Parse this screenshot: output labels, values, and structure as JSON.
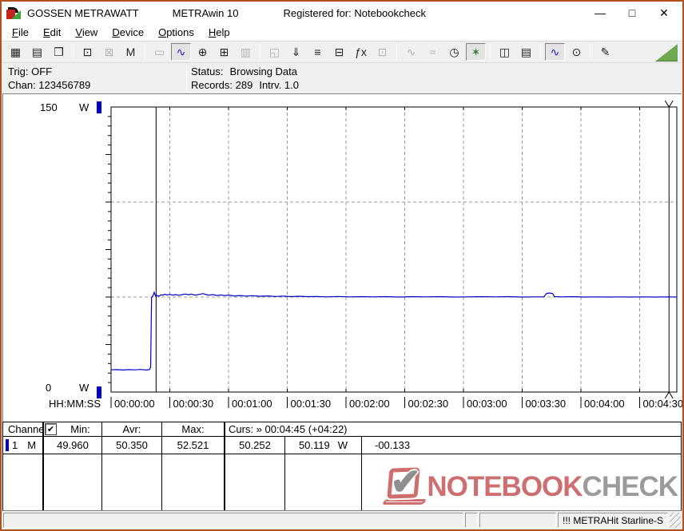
{
  "window": {
    "title_left": "GOSSEN METRAWATT",
    "title_mid": "METRAwin 10",
    "title_right": "Registered for: Notebookcheck",
    "controls": {
      "minimize": "—",
      "maximize": "□",
      "close": "✕"
    },
    "border_color": "#b0511e"
  },
  "menu": {
    "items": [
      {
        "label": "File"
      },
      {
        "label": "Edit"
      },
      {
        "label": "View"
      },
      {
        "label": "Device"
      },
      {
        "label": "Options"
      },
      {
        "label": "Help"
      }
    ]
  },
  "toolbar": {
    "buttons": [
      {
        "name": "save-button",
        "glyph": "▦"
      },
      {
        "name": "save-as-button",
        "glyph": "▤"
      },
      {
        "name": "open-file-button",
        "glyph": "❒"
      },
      {
        "sep": true
      },
      {
        "name": "read-from-device-button",
        "glyph": "⊡"
      },
      {
        "name": "send-to-device-button",
        "glyph": "⊠",
        "state": "disabled"
      },
      {
        "name": "read-memory-button",
        "glyph": "M"
      },
      {
        "sep": true
      },
      {
        "name": "numeric-display-button",
        "glyph": "▭",
        "state": "disabled"
      },
      {
        "name": "chart-display-button",
        "glyph": "∿",
        "state": "pressed",
        "color": "#2222cc"
      },
      {
        "name": "crosshair-cursor-button",
        "glyph": "⊕"
      },
      {
        "name": "table-display-button",
        "glyph": "⊞"
      },
      {
        "name": "histogram-display-button",
        "glyph": "▥",
        "state": "disabled"
      },
      {
        "sep": true
      },
      {
        "name": "copy-export-button",
        "glyph": "◱",
        "state": "disabled"
      },
      {
        "name": "store-config-button",
        "glyph": "⇓"
      },
      {
        "name": "channel-settings-button",
        "glyph": "≡"
      },
      {
        "name": "monitor-settings-button",
        "glyph": "⊟"
      },
      {
        "name": "formula-button",
        "glyph": "ƒx"
      },
      {
        "name": "interval-button",
        "glyph": "⊡",
        "state": "disabled"
      },
      {
        "sep": true
      },
      {
        "name": "wave-single-button",
        "glyph": "∿",
        "state": "disabled"
      },
      {
        "name": "wave-dense-button",
        "glyph": "≈",
        "state": "disabled"
      },
      {
        "name": "clock-button",
        "glyph": "◷"
      },
      {
        "name": "trigger-button",
        "glyph": "✶",
        "state": "pressed",
        "color": "#2e7d32"
      },
      {
        "sep": true
      },
      {
        "name": "print-preview-button",
        "glyph": "◫"
      },
      {
        "name": "print-button",
        "glyph": "▤"
      },
      {
        "sep": true
      },
      {
        "name": "zoom-curve-button",
        "glyph": "∿",
        "state": "pressed",
        "color": "#2222cc"
      },
      {
        "name": "zoom-manual-button",
        "glyph": "⊙"
      },
      {
        "sep": true
      },
      {
        "name": "comment-button",
        "glyph": "✎"
      }
    ]
  },
  "status_panel": {
    "trig": "Trig: OFF",
    "chan": "Chan: 123456789",
    "status_label": "Status:",
    "status_value": "Browsing Data",
    "records": "Records: 289",
    "interval": "Intrv. 1.0"
  },
  "chart_data": {
    "type": "line",
    "title": "",
    "xlabel": "HH:MM:SS",
    "ylabel": "W",
    "ylim": [
      0,
      150
    ],
    "y_top_label": "150",
    "y_bottom_label": "0",
    "y_unit": "W",
    "y_gridlines_w": [
      50,
      100
    ],
    "grid": "dashed-gray",
    "x_ticks": [
      {
        "t": 0,
        "label": "00:00:00"
      },
      {
        "t": 30,
        "label": "00:00:30"
      },
      {
        "t": 60,
        "label": "00:01:00"
      },
      {
        "t": 90,
        "label": "00:01:30"
      },
      {
        "t": 120,
        "label": "00:02:00"
      },
      {
        "t": 150,
        "label": "00:02:30"
      },
      {
        "t": 180,
        "label": "00:03:00"
      },
      {
        "t": 210,
        "label": "00:03:30"
      },
      {
        "t": 240,
        "label": "00:04:00"
      },
      {
        "t": 270,
        "label": "00:04:30"
      }
    ],
    "xlim_seconds": [
      0,
      289
    ],
    "cursors": {
      "c1_seconds": 23,
      "c2_seconds": 285
    },
    "series": [
      {
        "name": "Channel 1 power (W)",
        "color": "#0000cc",
        "points": [
          [
            0,
            11.7
          ],
          [
            3,
            11.8
          ],
          [
            6,
            11.6
          ],
          [
            9,
            11.8
          ],
          [
            12,
            11.7
          ],
          [
            15,
            11.9
          ],
          [
            18,
            11.6
          ],
          [
            19.6,
            11.8
          ],
          [
            20.2,
            13.0
          ],
          [
            20.7,
            49.8
          ],
          [
            21.3,
            50.4
          ],
          [
            22,
            52.5
          ],
          [
            22.8,
            50.3
          ],
          [
            23.6,
            50.9
          ],
          [
            24.5,
            50.4
          ],
          [
            25.5,
            51.2
          ],
          [
            26.5,
            51.0
          ],
          [
            27.5,
            51.5
          ],
          [
            28.5,
            51.1
          ],
          [
            30,
            51.4
          ],
          [
            31.5,
            51.0
          ],
          [
            33,
            51.3
          ],
          [
            34.5,
            50.9
          ],
          [
            36,
            51.2
          ],
          [
            38,
            51.6
          ],
          [
            39.5,
            51.2
          ],
          [
            41,
            51.5
          ],
          [
            43,
            51.0
          ],
          [
            45,
            51.4
          ],
          [
            47,
            51.8
          ],
          [
            48.5,
            51.3
          ],
          [
            50,
            51.0
          ],
          [
            52,
            51.3
          ],
          [
            54,
            50.8
          ],
          [
            56,
            51.1
          ],
          [
            58,
            50.8
          ],
          [
            60,
            51.0
          ],
          [
            63,
            50.6
          ],
          [
            66,
            50.8
          ],
          [
            69,
            50.5
          ],
          [
            72,
            50.7
          ],
          [
            76,
            50.4
          ],
          [
            80,
            50.6
          ],
          [
            84,
            50.3
          ],
          [
            88,
            50.5
          ],
          [
            92,
            50.2
          ],
          [
            96,
            50.4
          ],
          [
            100,
            50.2
          ],
          [
            105,
            50.3
          ],
          [
            110,
            50.1
          ],
          [
            116,
            50.3
          ],
          [
            122,
            50.1
          ],
          [
            128,
            50.2
          ],
          [
            134,
            50.1
          ],
          [
            140,
            50.2
          ],
          [
            147,
            50.0
          ],
          [
            154,
            50.2
          ],
          [
            161,
            50.1
          ],
          [
            168,
            50.2
          ],
          [
            175,
            50.0
          ],
          [
            182,
            50.1
          ],
          [
            189,
            50.2
          ],
          [
            196,
            50.1
          ],
          [
            203,
            50.2
          ],
          [
            210,
            50.0
          ],
          [
            217,
            50.1
          ],
          [
            221,
            50.1
          ],
          [
            222.5,
            51.9
          ],
          [
            224,
            52.1
          ],
          [
            225.5,
            51.8
          ],
          [
            226.5,
            50.2
          ],
          [
            230,
            50.1
          ],
          [
            236,
            50.2
          ],
          [
            242,
            50.0
          ],
          [
            248,
            50.1
          ],
          [
            254,
            50.0
          ],
          [
            260,
            50.1
          ],
          [
            266,
            50.0
          ],
          [
            272,
            50.1
          ],
          [
            278,
            50.0
          ],
          [
            284,
            50.1
          ],
          [
            289,
            50.0
          ]
        ]
      }
    ]
  },
  "table": {
    "headers": {
      "channel": "Channel:",
      "checkbox_checked": "✔",
      "min": "Min:",
      "avr": "Avr:",
      "max": "Max:",
      "cursor": "Curs: » 00:04:45 (+04:22)"
    },
    "row": {
      "channel_num": "1",
      "channel_mode": "M",
      "min": "49.960",
      "avr": "50.350",
      "max": "52.521",
      "cursor_a": "50.252",
      "cursor_b": "50.119",
      "unit": "W",
      "delta": "-00.133"
    }
  },
  "logo": {
    "check_glyph": "✔",
    "word_red": "NOTEBOOK",
    "word_gray": "CHECK",
    "red": "#cd6f6f",
    "gray": "#9b9b9b"
  },
  "statusbar": {
    "device": "!!! METRAHit Starline-S"
  }
}
